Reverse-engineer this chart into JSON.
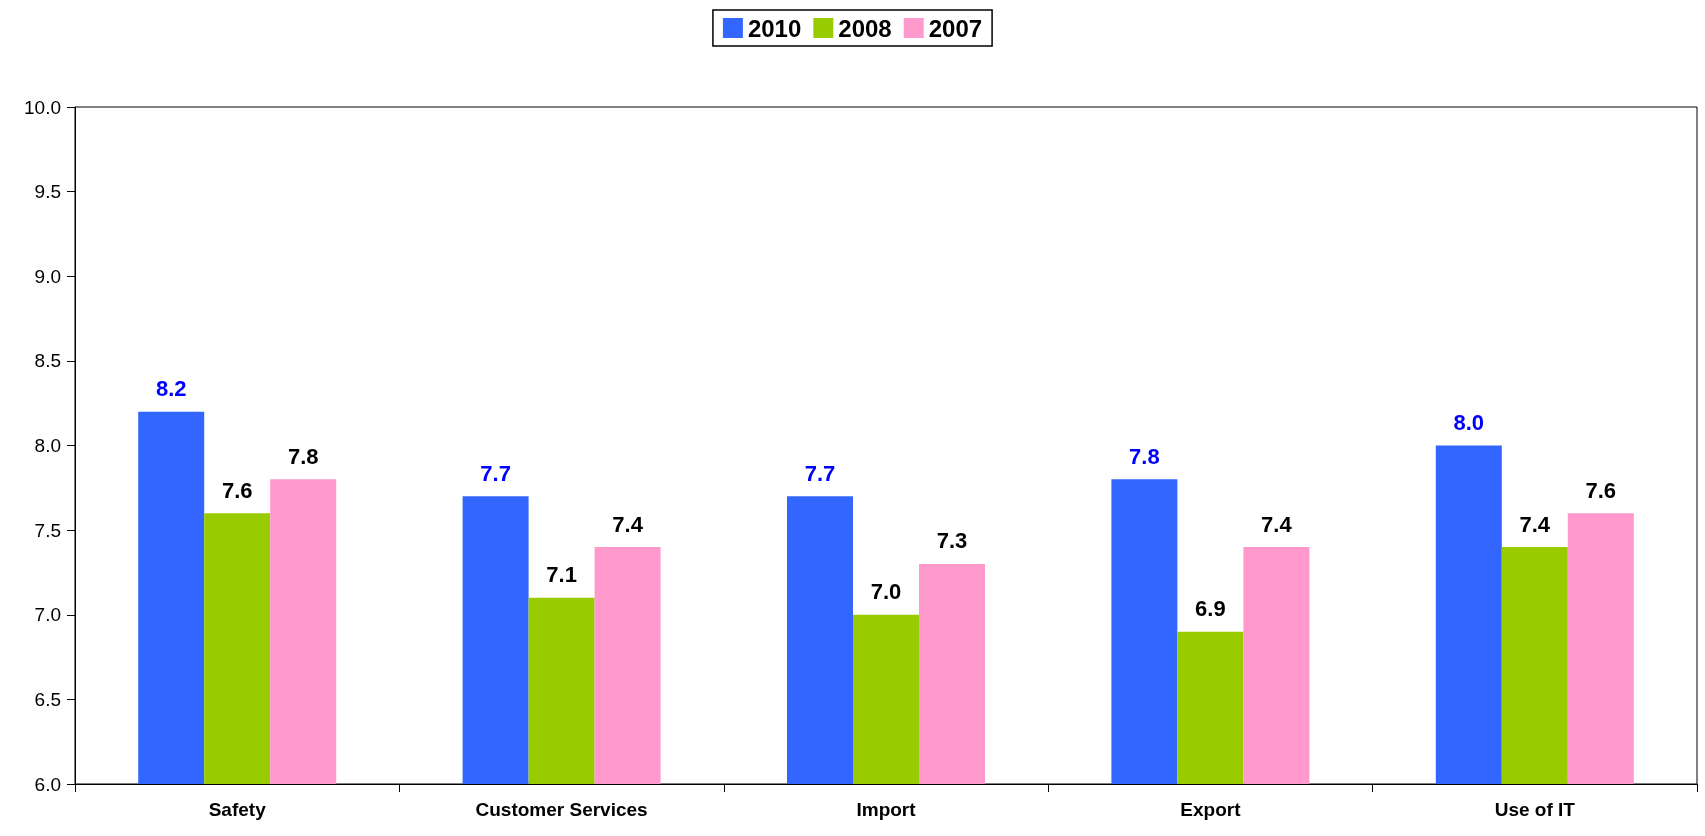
{
  "chart_data": {
    "type": "bar",
    "categories": [
      "Safety",
      "Customer Services",
      "Import",
      "Export",
      "Use of IT"
    ],
    "series": [
      {
        "name": "2010",
        "color": "#3366ff",
        "values": [
          8.2,
          7.7,
          7.7,
          7.8,
          8.0
        ],
        "value_labels": [
          "8.2",
          "7.7",
          "7.7",
          "7.8",
          "8.0"
        ]
      },
      {
        "name": "2008",
        "color": "#99cc00",
        "values": [
          7.6,
          7.1,
          7.0,
          6.9,
          7.4
        ],
        "value_labels": [
          "7.6",
          "7.1",
          "7.0",
          "6.9",
          "7.4"
        ]
      },
      {
        "name": "2007",
        "color": "#ff99cc",
        "values": [
          7.8,
          7.4,
          7.3,
          7.4,
          7.6
        ],
        "value_labels": [
          "7.8",
          "7.4",
          "7.3",
          "7.4",
          "7.6"
        ]
      }
    ],
    "ylim": [
      6,
      10
    ],
    "yticks": [
      {
        "value": 6,
        "label": "6.0"
      },
      {
        "value": 6.5,
        "label": "6.5"
      },
      {
        "value": 7,
        "label": "7.0"
      },
      {
        "value": 7.5,
        "label": "7.5"
      },
      {
        "value": 8,
        "label": "8.0"
      },
      {
        "value": 8.5,
        "label": "8.5"
      },
      {
        "value": 9,
        "label": "9.0"
      },
      {
        "value": 9.5,
        "label": "9.5"
      },
      {
        "value": 10,
        "label": "10.0"
      }
    ],
    "grid": false,
    "legend": "top"
  }
}
